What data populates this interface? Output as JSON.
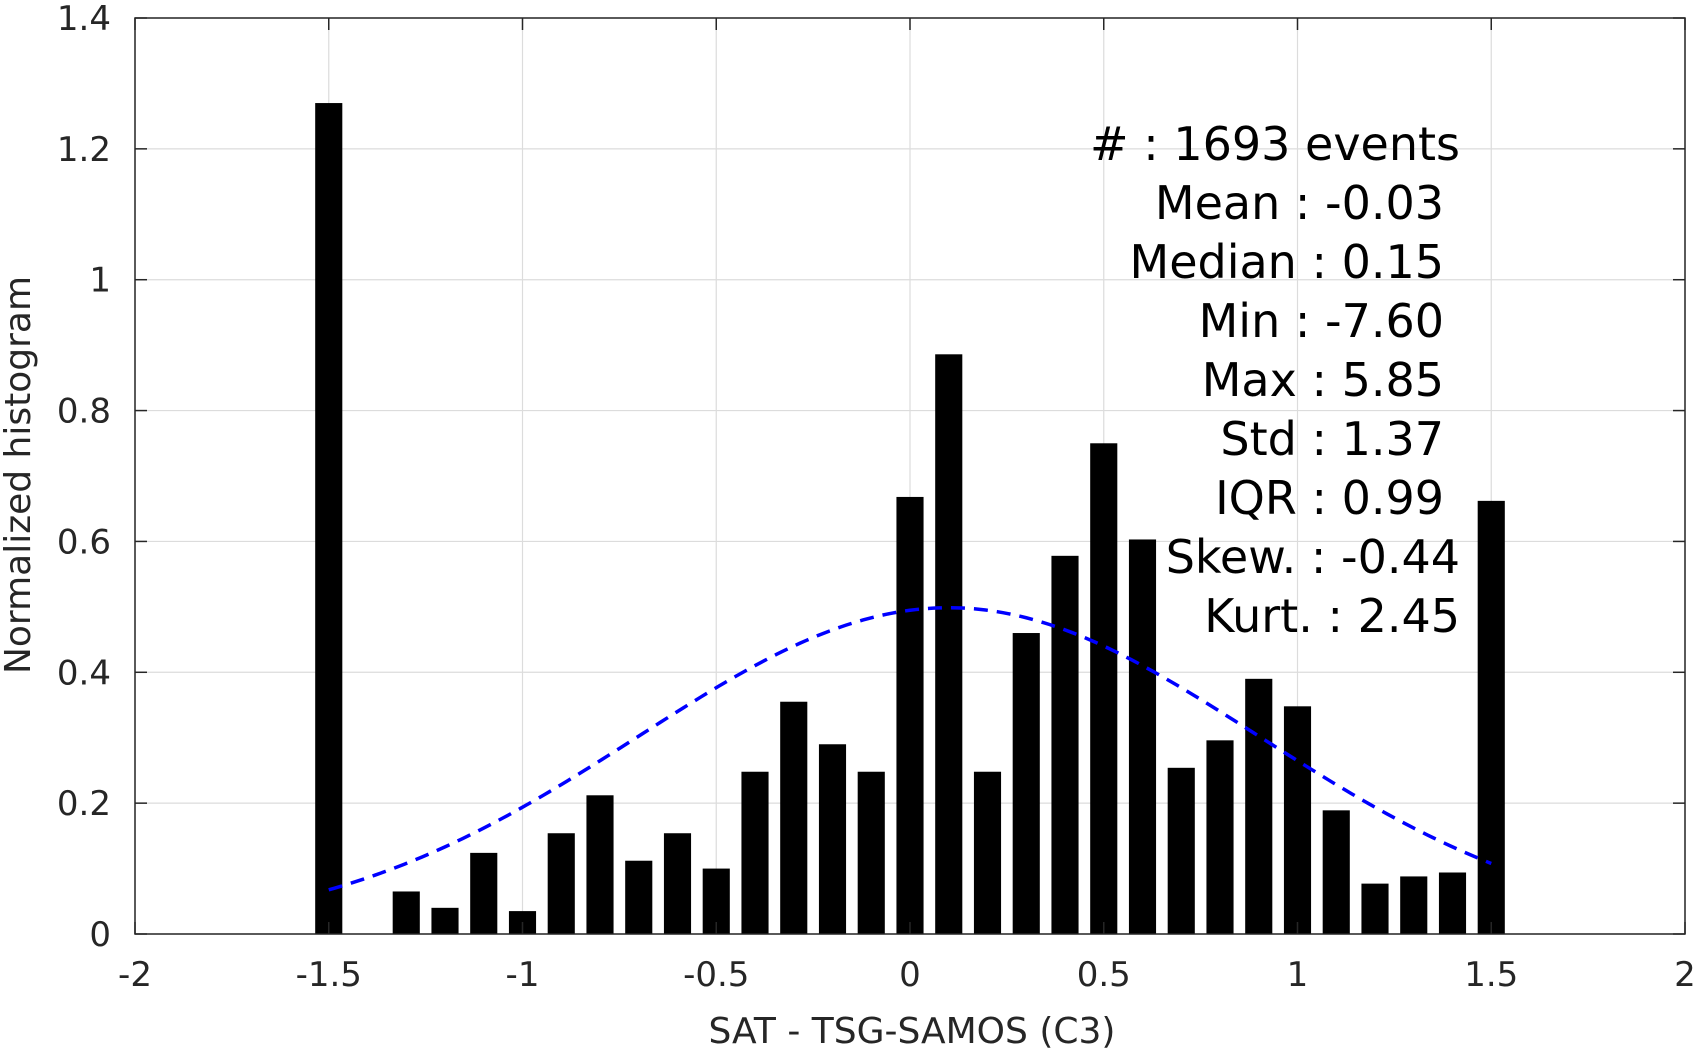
{
  "chart_data": {
    "type": "bar",
    "xlabel": "SAT - TSG-SAMOS (C3)",
    "ylabel": "Normalized histogram",
    "xlim": [
      -2,
      2
    ],
    "ylim": [
      0,
      1.4
    ],
    "xticks": [
      -2,
      -1.5,
      -1,
      -0.5,
      0,
      0.5,
      1,
      1.5,
      2
    ],
    "xtick_labels": [
      "-2",
      "-1.5",
      "-1",
      "-0.5",
      "0",
      "0.5",
      "1",
      "1.5",
      "2"
    ],
    "yticks": [
      0,
      0.2,
      0.4,
      0.6,
      0.8,
      1,
      1.2,
      1.4
    ],
    "ytick_labels": [
      "0",
      "0.2",
      "0.4",
      "0.6",
      "0.8",
      "1",
      "1.2",
      "1.4"
    ],
    "grid": true,
    "bar_color": "#000000",
    "bar_width": 0.07,
    "bars": [
      {
        "x": -1.5,
        "y": 1.27
      },
      {
        "x": -1.3,
        "y": 0.065
      },
      {
        "x": -1.2,
        "y": 0.04
      },
      {
        "x": -1.1,
        "y": 0.124
      },
      {
        "x": -1.0,
        "y": 0.035
      },
      {
        "x": -0.9,
        "y": 0.154
      },
      {
        "x": -0.8,
        "y": 0.212
      },
      {
        "x": -0.7,
        "y": 0.112
      },
      {
        "x": -0.6,
        "y": 0.154
      },
      {
        "x": -0.5,
        "y": 0.1
      },
      {
        "x": -0.4,
        "y": 0.248
      },
      {
        "x": -0.3,
        "y": 0.355
      },
      {
        "x": -0.2,
        "y": 0.29
      },
      {
        "x": -0.1,
        "y": 0.248
      },
      {
        "x": 0.0,
        "y": 0.668
      },
      {
        "x": 0.1,
        "y": 0.886
      },
      {
        "x": 0.2,
        "y": 0.248
      },
      {
        "x": 0.3,
        "y": 0.46
      },
      {
        "x": 0.4,
        "y": 0.578
      },
      {
        "x": 0.5,
        "y": 0.75
      },
      {
        "x": 0.6,
        "y": 0.603
      },
      {
        "x": 0.7,
        "y": 0.254
      },
      {
        "x": 0.8,
        "y": 0.296
      },
      {
        "x": 0.9,
        "y": 0.39
      },
      {
        "x": 1.0,
        "y": 0.348
      },
      {
        "x": 1.1,
        "y": 0.189
      },
      {
        "x": 1.2,
        "y": 0.077
      },
      {
        "x": 1.3,
        "y": 0.088
      },
      {
        "x": 1.4,
        "y": 0.094
      },
      {
        "x": 1.5,
        "y": 0.662
      }
    ],
    "fit_curve": {
      "style": "dashed",
      "color": "#0000ff",
      "mean": 0.1,
      "std": 0.8,
      "x_range": [
        -1.5,
        1.5
      ]
    }
  },
  "stats": [
    {
      "label": "#  ",
      "value": ": 1693 events"
    },
    {
      "label": "Mean ",
      "value": ": -0.03"
    },
    {
      "label": "Median ",
      "value": ": 0.15"
    },
    {
      "label": "Min ",
      "value": ": -7.60"
    },
    {
      "label": "Max ",
      "value": ": 5.85"
    },
    {
      "label": "Std ",
      "value": ": 1.37"
    },
    {
      "label": "IQR ",
      "value": ": 0.99"
    },
    {
      "label": "Skew. ",
      "value": ": -0.44"
    },
    {
      "label": "Kurt. ",
      "value": ": 2.45"
    }
  ]
}
